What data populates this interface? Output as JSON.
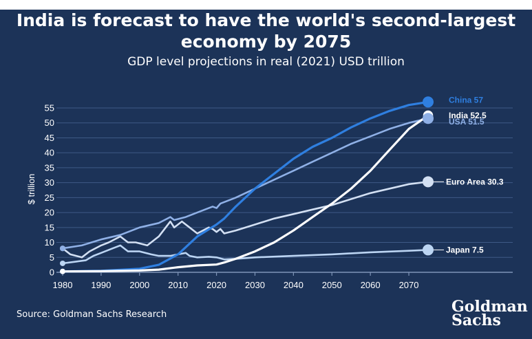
{
  "title_line1": "India is forecast to have the world's second-largest",
  "title_line2": "economy by 2075",
  "subtitle": "GDP level projections in real (2021) USD trillion",
  "source": "Source: Goldman Sachs Research",
  "logo": {
    "line1": "Goldman",
    "line2": "Sachs"
  },
  "colors": {
    "background": "#1c3358",
    "china": "#2f7fe0",
    "india": "#ffffff",
    "usa": "#8fb0e6",
    "euro_area": "#d3e0f3",
    "japan": "#bcd5f3",
    "grid": "#3e5a86"
  },
  "chart_data": {
    "type": "line",
    "title": "India is forecast to have the world's second-largest economy by 2075",
    "subtitle": "GDP level projections in real (2021) USD trillion",
    "ylabel": "$ trillion",
    "xlabel": "",
    "xlim": [
      1980,
      2075
    ],
    "ylim": [
      0,
      55
    ],
    "xticks": [
      1980,
      1990,
      2000,
      2010,
      2020,
      2030,
      2040,
      2050,
      2060,
      2070
    ],
    "yticks": [
      0,
      5,
      10,
      15,
      20,
      25,
      30,
      35,
      40,
      45,
      50,
      55
    ],
    "grid": "horizontal",
    "series": [
      {
        "name": "China",
        "end_label": "China 57",
        "end_value": 57,
        "color_key": "china",
        "points": [
          [
            1980,
            0.3
          ],
          [
            1990,
            0.5
          ],
          [
            2000,
            1.2
          ],
          [
            2005,
            2.5
          ],
          [
            2010,
            6
          ],
          [
            2015,
            12
          ],
          [
            2020,
            16
          ],
          [
            2022,
            18
          ],
          [
            2025,
            22
          ],
          [
            2030,
            28
          ],
          [
            2035,
            33
          ],
          [
            2040,
            38
          ],
          [
            2045,
            42
          ],
          [
            2050,
            45
          ],
          [
            2055,
            48.5
          ],
          [
            2060,
            51.5
          ],
          [
            2065,
            54
          ],
          [
            2070,
            56
          ],
          [
            2075,
            57
          ]
        ]
      },
      {
        "name": "India",
        "end_label": "India 52.5",
        "end_value": 52.5,
        "color_key": "india",
        "points": [
          [
            1980,
            0.3
          ],
          [
            1990,
            0.4
          ],
          [
            2000,
            0.6
          ],
          [
            2005,
            0.9
          ],
          [
            2010,
            1.7
          ],
          [
            2015,
            2.3
          ],
          [
            2020,
            2.6
          ],
          [
            2022,
            3.3
          ],
          [
            2025,
            4.5
          ],
          [
            2030,
            7
          ],
          [
            2035,
            10
          ],
          [
            2040,
            14
          ],
          [
            2045,
            18.5
          ],
          [
            2050,
            23
          ],
          [
            2055,
            28
          ],
          [
            2060,
            34
          ],
          [
            2065,
            41
          ],
          [
            2070,
            48
          ],
          [
            2075,
            52.5
          ]
        ]
      },
      {
        "name": "USA",
        "end_label": "USA 51.5",
        "end_value": 51.5,
        "color_key": "usa",
        "points": [
          [
            1980,
            8
          ],
          [
            1985,
            9
          ],
          [
            1990,
            11
          ],
          [
            1995,
            12.5
          ],
          [
            2000,
            15
          ],
          [
            2005,
            16.5
          ],
          [
            2008,
            18.5
          ],
          [
            2009,
            17.5
          ],
          [
            2012,
            18.5
          ],
          [
            2015,
            20
          ],
          [
            2018,
            21.5
          ],
          [
            2019,
            22
          ],
          [
            2020,
            21.5
          ],
          [
            2021,
            23
          ],
          [
            2025,
            25
          ],
          [
            2030,
            28
          ],
          [
            2035,
            31
          ],
          [
            2040,
            34
          ],
          [
            2045,
            37
          ],
          [
            2050,
            40
          ],
          [
            2055,
            43
          ],
          [
            2060,
            45.5
          ],
          [
            2065,
            48
          ],
          [
            2070,
            50
          ],
          [
            2075,
            51.5
          ]
        ]
      },
      {
        "name": "Euro Area",
        "end_label": "Euro Area 30.3",
        "end_value": 30.3,
        "color_key": "euro_area",
        "points": [
          [
            1980,
            8
          ],
          [
            1982,
            6
          ],
          [
            1985,
            5
          ],
          [
            1987,
            7
          ],
          [
            1990,
            9
          ],
          [
            1992,
            10
          ],
          [
            1995,
            12
          ],
          [
            1997,
            10
          ],
          [
            1999,
            10
          ],
          [
            2002,
            9
          ],
          [
            2005,
            12
          ],
          [
            2008,
            17
          ],
          [
            2009,
            15
          ],
          [
            2011,
            17
          ],
          [
            2013,
            15
          ],
          [
            2015,
            13
          ],
          [
            2018,
            15
          ],
          [
            2019,
            14.5
          ],
          [
            2020,
            13.5
          ],
          [
            2021,
            14.5
          ],
          [
            2022,
            13
          ],
          [
            2025,
            14
          ],
          [
            2030,
            16
          ],
          [
            2035,
            18
          ],
          [
            2040,
            19.5
          ],
          [
            2045,
            21
          ],
          [
            2050,
            22.5
          ],
          [
            2055,
            24.5
          ],
          [
            2060,
            26.5
          ],
          [
            2065,
            28
          ],
          [
            2070,
            29.5
          ],
          [
            2075,
            30.3
          ]
        ]
      },
      {
        "name": "Japan",
        "end_label": "Japan 7.5",
        "end_value": 7.5,
        "color_key": "japan",
        "points": [
          [
            1980,
            3
          ],
          [
            1983,
            3.5
          ],
          [
            1986,
            4
          ],
          [
            1988,
            5.5
          ],
          [
            1990,
            6.5
          ],
          [
            1993,
            8
          ],
          [
            1995,
            9
          ],
          [
            1997,
            7
          ],
          [
            2000,
            7
          ],
          [
            2003,
            6
          ],
          [
            2005,
            5.5
          ],
          [
            2008,
            5.5
          ],
          [
            2010,
            6
          ],
          [
            2012,
            6.5
          ],
          [
            2013,
            5.5
          ],
          [
            2015,
            5
          ],
          [
            2018,
            5.2
          ],
          [
            2020,
            5
          ],
          [
            2022,
            4.3
          ],
          [
            2025,
            4.5
          ],
          [
            2030,
            5
          ],
          [
            2040,
            5.5
          ],
          [
            2050,
            6
          ],
          [
            2060,
            6.7
          ],
          [
            2070,
            7.2
          ],
          [
            2075,
            7.5
          ]
        ]
      }
    ]
  }
}
